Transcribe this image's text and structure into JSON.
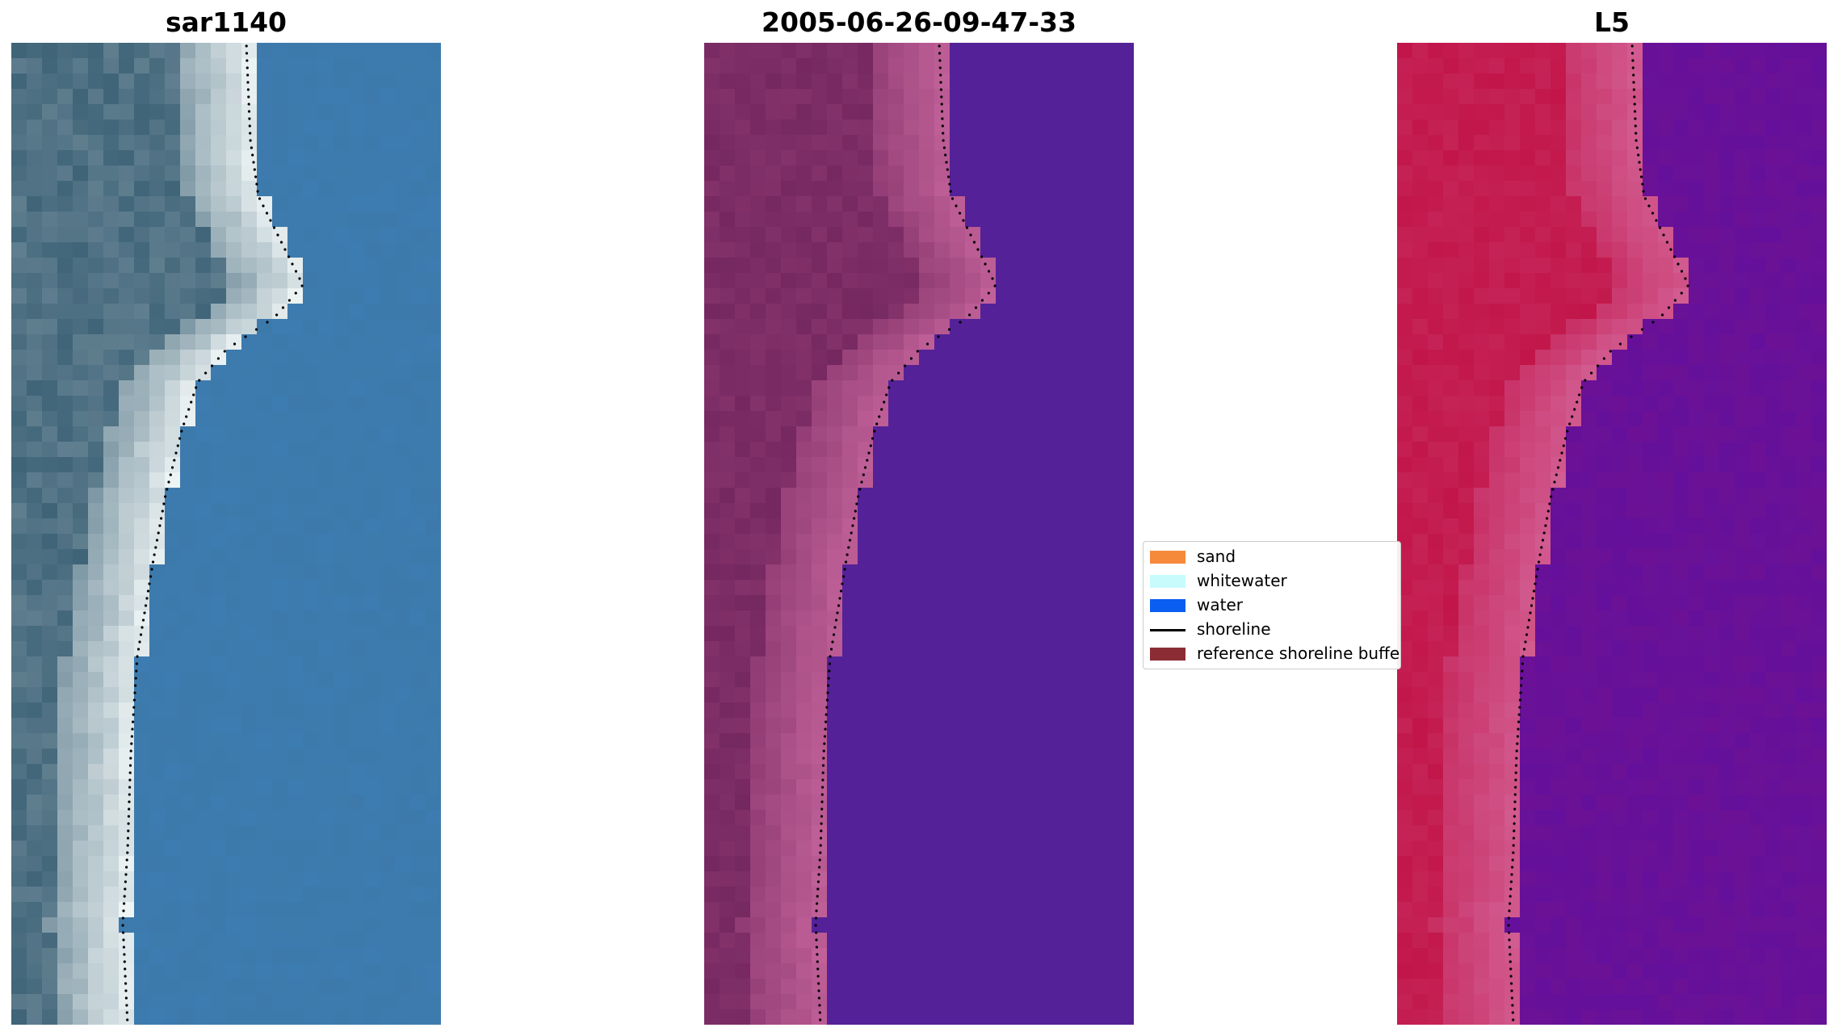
{
  "panels": [
    {
      "title": "sar1140",
      "style": "rgb",
      "color_land": "#3f6478",
      "color_sand": "#f0f6f6",
      "color_water": "#3d7db3"
    },
    {
      "title": "2005-06-26-09-47-33",
      "style": "classified",
      "color_land": "#75275f",
      "color_sand": "#c3629a",
      "color_water": "#542198"
    },
    {
      "title": "L5",
      "style": "index",
      "color_land": "#c2164a",
      "color_sand": "#d25d92",
      "color_water": "#5f10a0"
    }
  ],
  "legend": {
    "items": [
      {
        "label": "sand",
        "kind": "patch",
        "color": "#f58a3b"
      },
      {
        "label": "whitewater",
        "kind": "patch",
        "color": "#c8fbfb"
      },
      {
        "label": "water",
        "kind": "patch",
        "color": "#0a5ef0"
      },
      {
        "label": "shoreline",
        "kind": "line",
        "color": "#000000"
      },
      {
        "label": "reference shoreline buffer",
        "kind": "patch",
        "color": "#8b2c35"
      }
    ]
  }
}
